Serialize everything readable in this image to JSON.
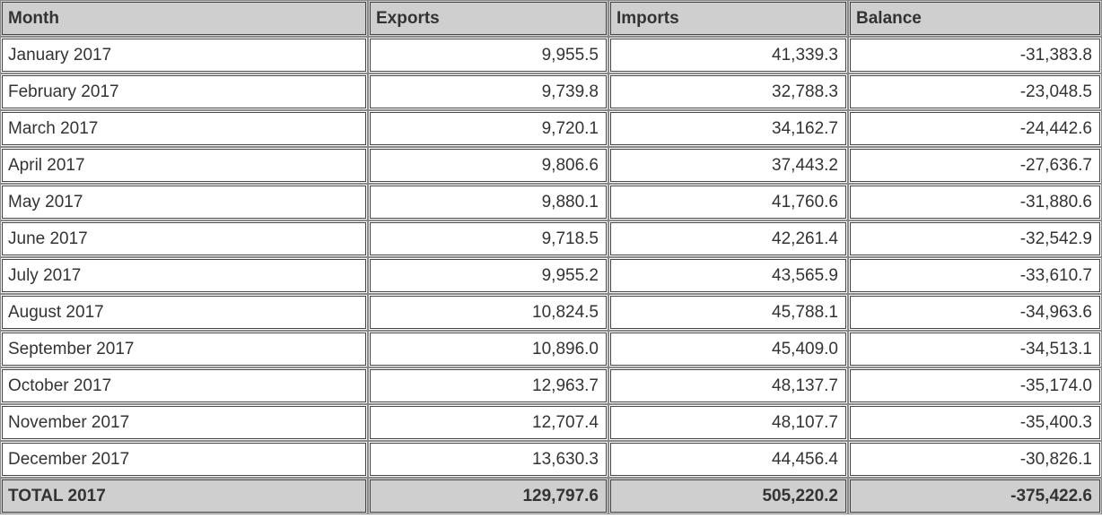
{
  "table": {
    "headers": {
      "month": "Month",
      "exports": "Exports",
      "imports": "Imports",
      "balance": "Balance"
    },
    "rows": [
      {
        "month": "January 2017",
        "exports": "9,955.5",
        "imports": "41,339.3",
        "balance": "-31,383.8"
      },
      {
        "month": "February 2017",
        "exports": "9,739.8",
        "imports": "32,788.3",
        "balance": "-23,048.5"
      },
      {
        "month": "March 2017",
        "exports": "9,720.1",
        "imports": "34,162.7",
        "balance": "-24,442.6"
      },
      {
        "month": "April 2017",
        "exports": "9,806.6",
        "imports": "37,443.2",
        "balance": "-27,636.7"
      },
      {
        "month": "May 2017",
        "exports": "9,880.1",
        "imports": "41,760.6",
        "balance": "-31,880.6"
      },
      {
        "month": "June 2017",
        "exports": "9,718.5",
        "imports": "42,261.4",
        "balance": "-32,542.9"
      },
      {
        "month": "July 2017",
        "exports": "9,955.2",
        "imports": "43,565.9",
        "balance": "-33,610.7"
      },
      {
        "month": "August 2017",
        "exports": "10,824.5",
        "imports": "45,788.1",
        "balance": "-34,963.6"
      },
      {
        "month": "September 2017",
        "exports": "10,896.0",
        "imports": "45,409.0",
        "balance": "-34,513.1"
      },
      {
        "month": "October 2017",
        "exports": "12,963.7",
        "imports": "48,137.7",
        "balance": "-35,174.0"
      },
      {
        "month": "November 2017",
        "exports": "12,707.4",
        "imports": "48,107.7",
        "balance": "-35,400.3"
      },
      {
        "month": "December 2017",
        "exports": "13,630.3",
        "imports": "44,456.4",
        "balance": "-30,826.1"
      }
    ],
    "total": {
      "month": "TOTAL 2017",
      "exports": "129,797.6",
      "imports": "505,220.2",
      "balance": "-375,422.6"
    }
  },
  "colors": {
    "header_bg": "#cfcfcf",
    "border": "#444444",
    "text": "#333333"
  }
}
